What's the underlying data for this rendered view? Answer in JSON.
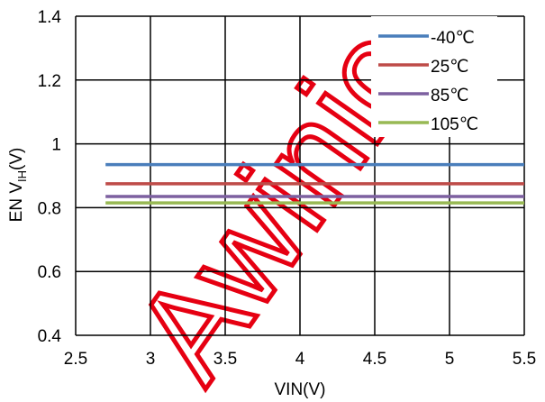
{
  "chart_data": {
    "type": "line",
    "title": "",
    "xlabel": "VIN(V)",
    "ylabel_main": "EN V",
    "ylabel_sub": "IH",
    "ylabel_unit": "(V)",
    "xlim": [
      2.5,
      5.5
    ],
    "ylim": [
      0.4,
      1.4
    ],
    "xticks": [
      2.5,
      3,
      3.5,
      4,
      4.5,
      5,
      5.5
    ],
    "xtick_labels": [
      "2.5",
      "3",
      "3.5",
      "4",
      "4.5",
      "5",
      "5.5"
    ],
    "yticks": [
      0.4,
      0.6,
      0.8,
      1.0,
      1.2,
      1.4
    ],
    "ytick_labels": [
      "0.4",
      "0.6",
      "0.8",
      "1",
      "1.2",
      "1.4"
    ],
    "grid": true,
    "legend_position": "top-right",
    "series": [
      {
        "name": "-40℃",
        "color": "#4a7ebb",
        "x": [
          2.7,
          5.5
        ],
        "y": [
          0.935,
          0.935
        ]
      },
      {
        "name": "25℃",
        "color": "#be4b48",
        "x": [
          2.7,
          5.5
        ],
        "y": [
          0.875,
          0.875
        ]
      },
      {
        "name": "85℃",
        "color": "#7d60a0",
        "x": [
          2.7,
          5.5
        ],
        "y": [
          0.835,
          0.835
        ]
      },
      {
        "name": "105℃",
        "color": "#98b954",
        "x": [
          2.7,
          5.5
        ],
        "y": [
          0.815,
          0.815
        ]
      }
    ],
    "watermark": "Awinic"
  }
}
